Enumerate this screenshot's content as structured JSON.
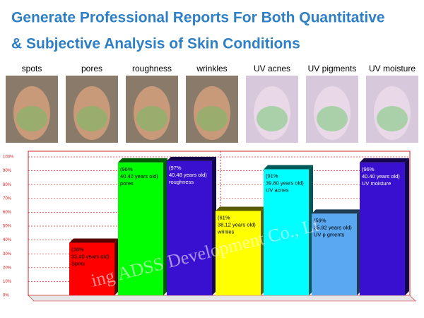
{
  "chart_data": {
    "type": "bar3d",
    "title_lines": [
      "Generate Professional Reports For Both Quantitative",
      "& Subjective Analysis of Skin Conditions"
    ],
    "categories": [
      "spots",
      "pores",
      "roughness",
      "wrinkles",
      "UV acnes",
      "UV pigments",
      "UV moisture"
    ],
    "values": [
      38,
      96,
      97,
      61,
      91,
      59,
      96
    ],
    "value_labels": [
      "(38%",
      "(96%",
      "(97%",
      "(61%",
      "(91%",
      "(59%",
      "(96%"
    ],
    "age_labels": [
      "33.40 years old)",
      "40.40 years old)",
      "40.48 years old)",
      "38.12 years old)",
      "39.80 years old)",
      "35.92 years old)",
      "40.40 years old)"
    ],
    "bar_names": [
      "Spots",
      "pores",
      "roughness",
      "wrinles",
      "UV acnes",
      "UV p gments",
      "UV moisture"
    ],
    "colors": [
      "#ff0000",
      "#00ff00",
      "#3a10d0",
      "#ffff00",
      "#00ffff",
      "#5aa8f0",
      "#3a10d0"
    ],
    "ylim": [
      0,
      100
    ],
    "yticks": [
      {
        "value": 0,
        "label": "0%"
      },
      {
        "value": 10,
        "label": "10%"
      },
      {
        "value": 20,
        "label": "20%"
      },
      {
        "value": 30,
        "label": "30%"
      },
      {
        "value": 40,
        "label": "40%"
      },
      {
        "value": 50,
        "label": "50%"
      },
      {
        "value": 60,
        "label": "60%"
      },
      {
        "value": 70,
        "label": "70%"
      },
      {
        "value": 80,
        "label": "80%"
      },
      {
        "value": 90,
        "label": "90%"
      },
      {
        "value": 100,
        "label": "100%"
      }
    ],
    "grid": true,
    "watermark": "ing ADSS Development Co., Lt"
  }
}
